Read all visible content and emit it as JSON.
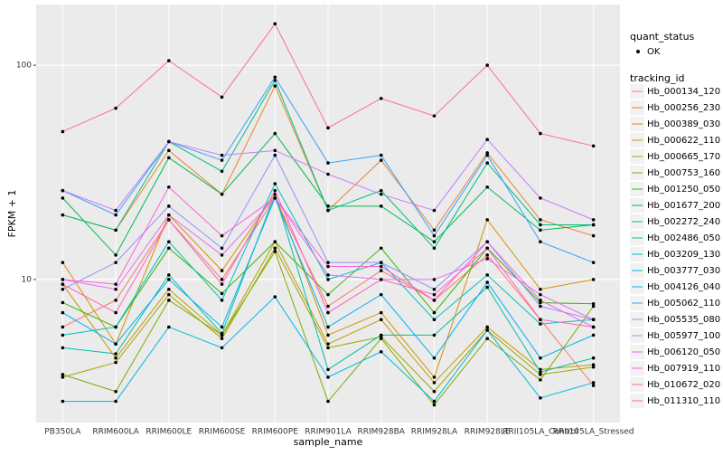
{
  "chart_data": {
    "type": "line",
    "log_y": true,
    "grid": true,
    "xlabel": "sample_name",
    "ylabel": "FPKM + 1",
    "legend_status_title": "quant_status",
    "legend_status_entry": "OK",
    "legend_title": "tracking_id",
    "categories": [
      "PB350LA",
      "RRIM600LA",
      "RRIM600LE",
      "RRIM600SE",
      "RRIM600PE",
      "RRIM901LA",
      "RRIM928BA",
      "RRIM928LA",
      "RRIM928LE",
      "RRII105LA_Control",
      "RRII105LA_Stressed"
    ],
    "ylim": [
      2.15,
      192
    ],
    "yticks": [
      10,
      100
    ],
    "series": [
      {
        "name": "Hb_000134_120",
        "color": "#F8766D",
        "values": [
          6,
          8,
          19,
          10,
          24,
          7.5,
          11,
          8,
          13,
          6.5,
          3.2
        ]
      },
      {
        "name": "Hb_000256_230",
        "color": "#EA8331",
        "values": [
          20,
          17,
          40,
          25,
          80,
          21,
          36,
          17,
          39,
          19,
          16
        ]
      },
      {
        "name": "Hb_000389_030",
        "color": "#D89000",
        "values": [
          12,
          5,
          20,
          11,
          25,
          5.5,
          7,
          3.5,
          19,
          9,
          10
        ]
      },
      {
        "name": "Hb_000622_110",
        "color": "#C09B00",
        "values": [
          9.5,
          4.3,
          9,
          5.5,
          15,
          5,
          6.5,
          3.3,
          6,
          3.8,
          4
        ]
      },
      {
        "name": "Hb_000665_170",
        "color": "#A3A500",
        "values": [
          3.5,
          4.1,
          8.5,
          5.3,
          14,
          4.8,
          5.4,
          3,
          5.8,
          3.6,
          3.9
        ]
      },
      {
        "name": "Hb_000753_160",
        "color": "#7CAE00",
        "values": [
          3.6,
          3,
          8,
          5.5,
          13.5,
          2.7,
          5.3,
          2.6,
          5.3,
          3.4,
          7.5
        ]
      },
      {
        "name": "Hb_001250_050",
        "color": "#39B600",
        "values": [
          7.8,
          6,
          14,
          8.6,
          15,
          8.5,
          14,
          7,
          14,
          7.8,
          7.7
        ]
      },
      {
        "name": "Hb_001677_200",
        "color": "#00BB4E",
        "values": [
          24,
          13,
          37,
          25,
          48,
          22,
          22,
          15,
          27,
          17,
          18
        ]
      },
      {
        "name": "Hb_002272_240",
        "color": "#00BF7D",
        "values": [
          20,
          17,
          44,
          32,
          85,
          21,
          26,
          14,
          35,
          18,
          18
        ]
      },
      {
        "name": "Hb_002486_050",
        "color": "#00C1A3",
        "values": [
          4.8,
          4.5,
          10.5,
          5.6,
          25,
          3.8,
          5.5,
          5.5,
          9.2,
          3.7,
          4.3
        ]
      },
      {
        "name": "Hb_003209_130",
        "color": "#00BFC4",
        "values": [
          5.5,
          6,
          15,
          8,
          28,
          10,
          12,
          6.5,
          10.5,
          6.2,
          6.5
        ]
      },
      {
        "name": "Hb_003777_030",
        "color": "#00BAE0",
        "values": [
          2.7,
          2.7,
          6,
          4.8,
          8.3,
          3.5,
          4.6,
          2.7,
          5.8,
          2.8,
          3.3
        ]
      },
      {
        "name": "Hb_004126_040",
        "color": "#00B0F6",
        "values": [
          7,
          5,
          10,
          6,
          24,
          6,
          8.5,
          4.3,
          9.7,
          4.3,
          5.5
        ]
      },
      {
        "name": "Hb_005062_110",
        "color": "#35A2FF",
        "values": [
          26,
          20,
          44,
          36,
          88,
          35,
          38,
          16,
          38,
          15,
          12
        ]
      },
      {
        "name": "Hb_005535_080",
        "color": "#9590FF",
        "values": [
          9,
          12,
          22,
          14,
          38,
          12,
          12,
          9,
          15,
          7.5,
          6.5
        ]
      },
      {
        "name": "Hb_005977_100",
        "color": "#C77CFF",
        "values": [
          26,
          21,
          44,
          38,
          40,
          31,
          25,
          21,
          45,
          24,
          19
        ]
      },
      {
        "name": "Hb_006120_050",
        "color": "#E76BF3",
        "values": [
          10,
          9,
          20,
          13,
          24,
          10.5,
          10,
          10,
          12.5,
          8.5,
          6.5
        ]
      },
      {
        "name": "Hb_007919_110",
        "color": "#FA62DB",
        "values": [
          10,
          9.5,
          27,
          16,
          24,
          11.5,
          11.5,
          8,
          15,
          8,
          6
        ]
      },
      {
        "name": "Hb_010672_020",
        "color": "#FF62BC",
        "values": [
          9.5,
          7,
          19,
          9.5,
          26,
          7,
          10,
          8.5,
          14,
          6.5,
          6
        ]
      },
      {
        "name": "Hb_011310_110",
        "color": "#FF6C91",
        "values": [
          49,
          63,
          105,
          71,
          156,
          51,
          70,
          58,
          100,
          48,
          42
        ]
      }
    ]
  }
}
